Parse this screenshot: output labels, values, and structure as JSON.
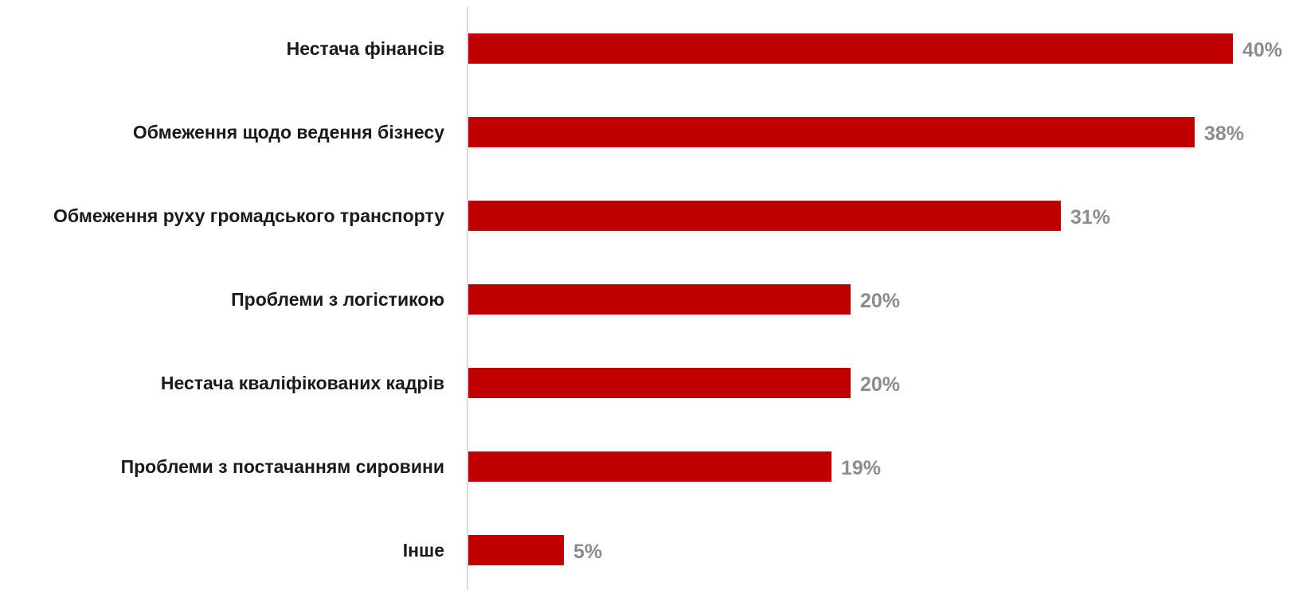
{
  "colors": {
    "bar": "#c00000",
    "value_label": "#8c8c8c",
    "axis": "#d0d0d0",
    "category_label": "#1a1a1a"
  },
  "chart_data": {
    "type": "bar",
    "orientation": "horizontal",
    "categories": [
      "Нестача фінансів",
      "Обмеження щодо ведення бізнесу",
      "Обмеження руху громадського транспорту",
      "Проблеми з логістикою",
      "Нестача кваліфікованих кадрів",
      "Проблеми з постачанням сировини",
      "Інше"
    ],
    "values": [
      40,
      38,
      31,
      20,
      20,
      19,
      5
    ],
    "value_labels": [
      "40%",
      "38%",
      "31%",
      "20%",
      "20%",
      "19%",
      "5%"
    ],
    "unit": "%",
    "xlim": [
      0,
      40
    ],
    "grid": false,
    "legend": "none"
  }
}
